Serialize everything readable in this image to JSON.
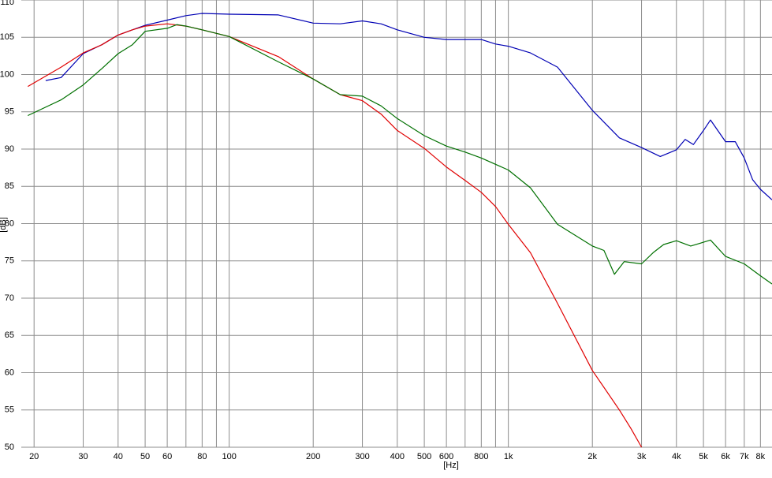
{
  "chart_data": {
    "type": "line",
    "x_label": "[Hz]",
    "y_label": "[dB]",
    "xscale": "log",
    "grid": true,
    "xlim": [
      18,
      8800
    ],
    "ylim": [
      50,
      110
    ],
    "xticks": [
      20,
      30,
      40,
      50,
      60,
      80,
      100,
      200,
      300,
      400,
      500,
      600,
      800,
      {
        "value": 1000,
        "label": "1k"
      },
      {
        "value": 2000,
        "label": "2k"
      },
      {
        "value": 3000,
        "label": "3k"
      },
      {
        "value": 4000,
        "label": "4k"
      },
      {
        "value": 5000,
        "label": "5k"
      },
      {
        "value": 6000,
        "label": "6k"
      },
      {
        "value": 7000,
        "label": "7k"
      },
      {
        "value": 8000,
        "label": "8k"
      }
    ],
    "xminor": [
      70,
      90,
      700,
      900
    ],
    "yticks": [
      50,
      55,
      60,
      65,
      70,
      75,
      80,
      85,
      90,
      95,
      100,
      105,
      110
    ],
    "series": [
      {
        "color": "#0000b4",
        "x": [
          22,
          25,
          30,
          35,
          40,
          45,
          50,
          60,
          70,
          80,
          100,
          150,
          200,
          250,
          300,
          350,
          400,
          500,
          600,
          700,
          800,
          900,
          1000,
          1200,
          1500,
          2000,
          2500,
          3000,
          3500,
          4000,
          4300,
          4600,
          5000,
          5300,
          6000,
          6500,
          7000,
          7500,
          8000,
          8800
        ],
        "values": [
          99.2,
          99.6,
          102.8,
          104,
          105.3,
          106,
          106.6,
          107.3,
          107.9,
          108.2,
          108.1,
          108,
          106.9,
          106.8,
          107.2,
          106.8,
          106,
          105,
          104.7,
          104.7,
          104.7,
          104.1,
          103.8,
          102.9,
          101,
          95.2,
          91.5,
          90.2,
          89,
          89.9,
          91.3,
          90.6,
          92.5,
          93.9,
          91,
          91,
          88.8,
          85.9,
          84.6,
          83.2
        ]
      },
      {
        "color": "#e00000",
        "x": [
          19,
          25,
          30,
          35,
          40,
          45,
          50,
          60,
          70,
          80,
          100,
          150,
          200,
          250,
          300,
          350,
          400,
          500,
          600,
          700,
          800,
          900,
          1000,
          1200,
          1500,
          2000,
          2500,
          2750,
          3000
        ],
        "values": [
          98.4,
          101,
          102.9,
          104,
          105.3,
          106,
          106.5,
          106.8,
          106.5,
          106,
          105.1,
          102.4,
          99.4,
          97.3,
          96.5,
          94.7,
          92.5,
          90.1,
          87.6,
          85.8,
          84.2,
          82.3,
          79.9,
          76.1,
          69.3,
          60.3,
          55,
          52.5,
          50
        ]
      },
      {
        "color": "#007000",
        "x": [
          19,
          25,
          30,
          35,
          40,
          45,
          50,
          60,
          65,
          70,
          80,
          100,
          150,
          200,
          250,
          300,
          350,
          400,
          500,
          600,
          700,
          800,
          1000,
          1200,
          1500,
          2000,
          2200,
          2400,
          2600,
          3000,
          3300,
          3600,
          4000,
          4500,
          5000,
          5300,
          6000,
          7000,
          8000,
          8800
        ],
        "values": [
          94.5,
          96.6,
          98.6,
          100.8,
          102.8,
          104,
          105.8,
          106.2,
          106.7,
          106.5,
          106,
          105.1,
          101.7,
          99.4,
          97.3,
          97.1,
          95.8,
          94.1,
          91.8,
          90.4,
          89.6,
          88.8,
          87.2,
          84.8,
          79.9,
          77,
          76.4,
          73.2,
          74.9,
          74.6,
          76.1,
          77.2,
          77.7,
          77,
          77.5,
          77.8,
          75.6,
          74.6,
          73,
          71.9
        ]
      }
    ]
  }
}
